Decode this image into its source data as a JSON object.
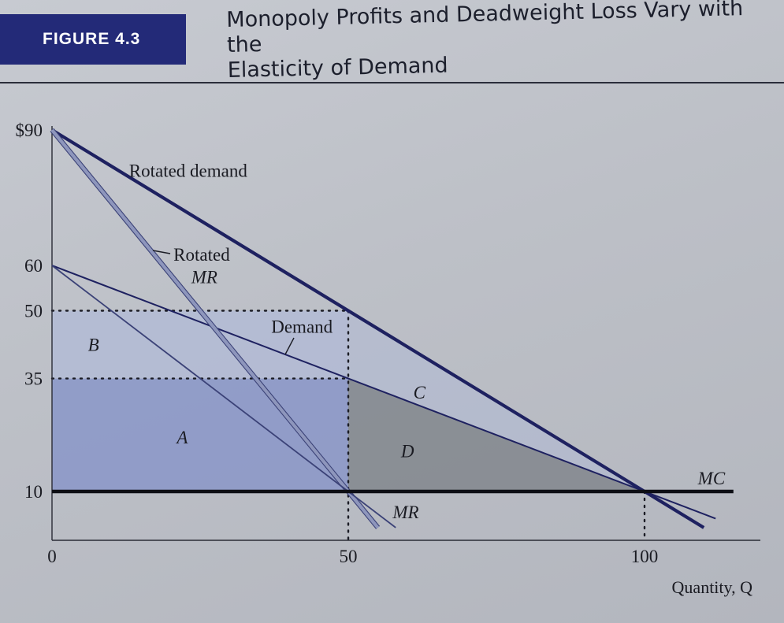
{
  "header": {
    "figure_label": "FIGURE 4.3",
    "title_line1": "Monopoly Profits and Deadweight Loss Vary with the",
    "title_line2": "Elasticity of Demand"
  },
  "colors": {
    "badge": "#232a78",
    "area_a": "#8a96c8",
    "area_b": "#b1bad6",
    "area_d": "#858990",
    "curve": "#1e2160"
  },
  "chart_data": {
    "type": "line",
    "title": "",
    "xlabel": "Quantity, Q",
    "ylabel": "",
    "xlim": [
      0,
      115
    ],
    "ylim": [
      0,
      95
    ],
    "x_ticks": [
      {
        "value": 0,
        "label": "0"
      },
      {
        "value": 50,
        "label": "50"
      },
      {
        "value": 100,
        "label": "100"
      }
    ],
    "y_ticks": [
      {
        "value": 10,
        "label": "10"
      },
      {
        "value": 35,
        "label": "35"
      },
      {
        "value": 50,
        "label": "50"
      },
      {
        "value": 60,
        "label": "60"
      },
      {
        "value": 90,
        "label": "$90"
      }
    ],
    "series": [
      {
        "name": "Rotated demand",
        "points": [
          [
            0,
            90
          ],
          [
            100,
            10
          ],
          [
            110,
            2
          ]
        ]
      },
      {
        "name": "Demand",
        "points": [
          [
            0,
            60
          ],
          [
            100,
            10
          ],
          [
            112,
            4
          ]
        ]
      },
      {
        "name": "Rotated MR",
        "points": [
          [
            0,
            90
          ],
          [
            50,
            10
          ],
          [
            55,
            2
          ]
        ]
      },
      {
        "name": "MR",
        "points": [
          [
            0,
            60
          ],
          [
            50,
            10
          ],
          [
            58,
            2
          ]
        ]
      },
      {
        "name": "MC",
        "points": [
          [
            0,
            10
          ],
          [
            115,
            10
          ]
        ]
      }
    ],
    "areas": [
      {
        "label": "A",
        "points": [
          [
            0,
            35
          ],
          [
            50,
            35
          ],
          [
            50,
            10
          ],
          [
            0,
            10
          ]
        ],
        "label_at": [
          22,
          22
        ]
      },
      {
        "label": "B",
        "points": [
          [
            0,
            50
          ],
          [
            50,
            50
          ],
          [
            50,
            35
          ],
          [
            0,
            35
          ]
        ],
        "label_at": [
          7,
          42.5
        ]
      },
      {
        "label": "C",
        "points": [
          [
            50,
            50
          ],
          [
            100,
            10
          ],
          [
            50,
            35
          ]
        ],
        "label_at": [
          62,
          32
        ]
      },
      {
        "label": "D",
        "points": [
          [
            50,
            35
          ],
          [
            100,
            10
          ],
          [
            50,
            10
          ]
        ],
        "label_at": [
          60,
          19
        ]
      }
    ],
    "curve_labels": [
      {
        "text": "Rotated demand",
        "at": [
          13,
          81
        ]
      },
      {
        "text": "Rotated",
        "at": [
          20.5,
          62.5
        ]
      },
      {
        "text": "MR",
        "at": [
          23.5,
          57.5
        ],
        "italic": true
      },
      {
        "text": "Demand",
        "at": [
          37,
          46.5
        ]
      },
      {
        "text": "MR",
        "at": [
          57.5,
          5.5
        ],
        "italic": true
      },
      {
        "text": "MC",
        "at": [
          109,
          13
        ],
        "italic": true
      }
    ],
    "reference_lines": [
      {
        "type": "horizontal-dotted",
        "y": 50,
        "x_range": [
          0,
          50
        ]
      },
      {
        "type": "horizontal-dotted",
        "y": 35,
        "x_range": [
          0,
          50
        ]
      },
      {
        "type": "vertical-dotted",
        "x": 50,
        "y_range": [
          0,
          50
        ]
      },
      {
        "type": "vertical-dotted",
        "x": 100,
        "y_range": [
          0,
          10
        ]
      }
    ]
  }
}
